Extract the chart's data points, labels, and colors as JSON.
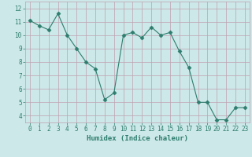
{
  "x": [
    0,
    1,
    2,
    3,
    4,
    5,
    6,
    7,
    8,
    9,
    10,
    11,
    12,
    13,
    14,
    15,
    16,
    17,
    18,
    19,
    20,
    21,
    22,
    23
  ],
  "y": [
    11.1,
    10.7,
    10.4,
    11.6,
    10.0,
    9.0,
    8.0,
    7.5,
    5.2,
    5.7,
    10.0,
    10.2,
    9.8,
    10.6,
    10.0,
    10.2,
    8.8,
    7.6,
    5.0,
    5.0,
    3.7,
    3.7,
    4.6,
    4.6
  ],
  "line_color": "#2e7d6e",
  "marker": "D",
  "marker_size": 2.5,
  "bg_color": "#cce8e8",
  "grid_color": "#c0a0b0",
  "xlabel": "Humidex (Indice chaleur)",
  "ylim": [
    3.5,
    12.5
  ],
  "xlim": [
    -0.5,
    23.5
  ],
  "yticks": [
    4,
    5,
    6,
    7,
    8,
    9,
    10,
    11,
    12
  ],
  "xticks": [
    0,
    1,
    2,
    3,
    4,
    5,
    6,
    7,
    8,
    9,
    10,
    11,
    12,
    13,
    14,
    15,
    16,
    17,
    18,
    19,
    20,
    21,
    22,
    23
  ],
  "tick_color": "#2e7d6e",
  "label_fontsize": 6.5,
  "tick_fontsize": 5.5
}
